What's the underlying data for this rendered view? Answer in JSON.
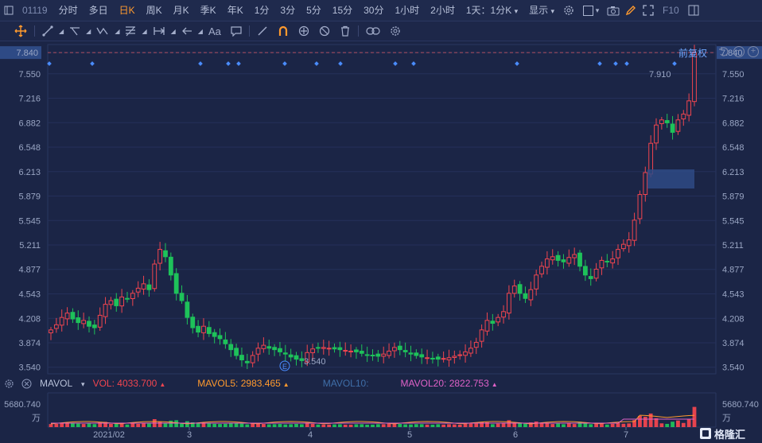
{
  "toolbar": {
    "stock_code": "01119",
    "periods": [
      {
        "label": "分时",
        "active": false
      },
      {
        "label": "多日",
        "active": false
      },
      {
        "label": "日K",
        "active": true
      },
      {
        "label": "周K",
        "active": false
      },
      {
        "label": "月K",
        "active": false
      },
      {
        "label": "季K",
        "active": false
      },
      {
        "label": "年K",
        "active": false
      },
      {
        "label": "1分",
        "active": false
      },
      {
        "label": "3分",
        "active": false
      },
      {
        "label": "5分",
        "active": false
      },
      {
        "label": "15分",
        "active": false
      },
      {
        "label": "30分",
        "active": false
      },
      {
        "label": "1小时",
        "active": false
      },
      {
        "label": "2小时",
        "active": false
      }
    ],
    "period_dropdown": "1天：1分K",
    "display_label": "显示",
    "f10_label": "F10"
  },
  "draw_tools": {
    "text_tool_label": "Aa"
  },
  "chart_controls": {
    "adjust_label": "前复权"
  },
  "colors": {
    "background": "#1b2546",
    "up": "#f0454f",
    "down": "#1ec25a",
    "orange": "#ff9a2e",
    "price_tag": "#2e4a85"
  },
  "chart_data": {
    "type": "candlestick",
    "y_ticks": [
      "7.840",
      "7.550",
      "7.216",
      "6.882",
      "6.548",
      "6.213",
      "5.879",
      "5.545",
      "5.211",
      "4.877",
      "4.543",
      "4.208",
      "3.874",
      "3.540"
    ],
    "x_ticks": [
      "2021/02",
      "3",
      "4",
      "5",
      "6",
      "7"
    ],
    "ylim": [
      3.45,
      7.95
    ],
    "current_price": "7.840",
    "high_annotation": "7.910",
    "low_annotation": "3.540",
    "closes": [
      4.05,
      4.12,
      4.22,
      4.28,
      4.2,
      4.15,
      4.18,
      4.1,
      4.08,
      4.25,
      4.4,
      4.45,
      4.38,
      4.5,
      4.47,
      4.55,
      4.62,
      4.68,
      4.6,
      4.95,
      5.15,
      5.05,
      4.8,
      4.55,
      4.45,
      4.22,
      4.08,
      4.02,
      4.1,
      4.0,
      3.96,
      3.93,
      3.86,
      3.78,
      3.7,
      3.64,
      3.6,
      3.7,
      3.8,
      3.84,
      3.8,
      3.78,
      3.75,
      3.72,
      3.68,
      3.65,
      3.63,
      3.74,
      3.79,
      3.8,
      3.81,
      3.8,
      3.79,
      3.78,
      3.77,
      3.76,
      3.75,
      3.73,
      3.71,
      3.7,
      3.69,
      3.72,
      3.76,
      3.81,
      3.78,
      3.75,
      3.72,
      3.7,
      3.68,
      3.67,
      3.66,
      3.65,
      3.66,
      3.67,
      3.69,
      3.71,
      3.75,
      3.8,
      3.88,
      4.05,
      4.18,
      4.14,
      4.22,
      4.3,
      4.55,
      4.65,
      4.55,
      4.48,
      4.6,
      4.8,
      4.92,
      5.02,
      5.05,
      5.0,
      4.98,
      5.04,
      5.08,
      4.92,
      4.8,
      4.75,
      4.88,
      5.0,
      4.98,
      5.02,
      5.15,
      5.22,
      5.28,
      5.55,
      5.9,
      6.2,
      6.6,
      6.85,
      6.92,
      6.88,
      6.75,
      6.92,
      7.0,
      7.18,
      7.84
    ],
    "volume_legend": {
      "indicator": "MAVOL",
      "vol_label": "VOL:",
      "vol": "4033.700",
      "mavol5_label": "MAVOL5:",
      "mavol5": "2983.465",
      "mavol10_label": "MAVOL10:",
      "mavol20_label": "MAVOL20:",
      "mavol20": "2822.753"
    },
    "volume_axis_max": "5680.740",
    "volume_unit": "万"
  },
  "brand": {
    "name": "格隆汇"
  }
}
